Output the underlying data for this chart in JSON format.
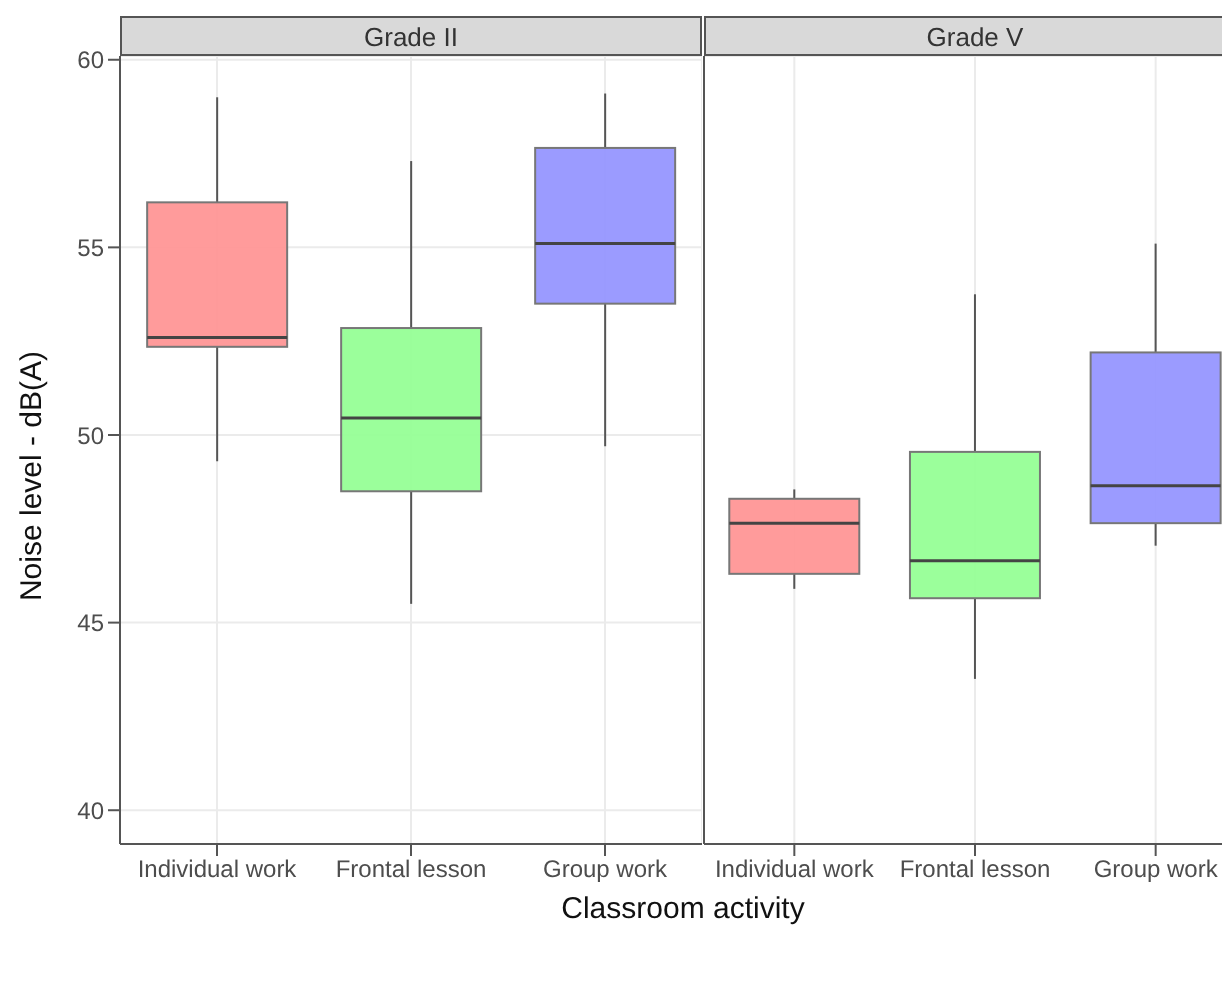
{
  "chart_data": [
    {
      "type": "box",
      "title": "Grade II",
      "ylabel": "Noise level - dB(A)",
      "xlabel": "Classroom activity",
      "categories": [
        "Individual work",
        "Frontal lesson",
        "Group work"
      ],
      "colors": [
        "#ff9696",
        "#96ff96",
        "#9696ff"
      ],
      "boxes": [
        {
          "low": 49.3,
          "q1": 52.35,
          "median": 52.6,
          "q3": 56.2,
          "high": 59.0
        },
        {
          "low": 45.5,
          "q1": 48.5,
          "median": 50.45,
          "q3": 52.85,
          "high": 57.3
        },
        {
          "low": 49.7,
          "q1": 53.5,
          "median": 55.1,
          "q3": 57.65,
          "high": 59.1
        }
      ],
      "ylim": [
        39.1,
        60.1
      ],
      "yticks": [
        40,
        45,
        50,
        55,
        60
      ],
      "grid": true
    },
    {
      "type": "box",
      "title": "Grade V",
      "categories": [
        "Individual work",
        "Frontal lesson",
        "Group work"
      ],
      "colors": [
        "#ff9696",
        "#96ff96",
        "#9696ff"
      ],
      "boxes": [
        {
          "low": 45.9,
          "q1": 46.3,
          "median": 47.65,
          "q3": 48.3,
          "high": 48.55
        },
        {
          "low": 43.5,
          "q1": 45.65,
          "median": 46.65,
          "q3": 49.55,
          "high": 53.75
        },
        {
          "low": 47.05,
          "q1": 47.65,
          "median": 48.65,
          "q3": 52.2,
          "high": 55.1
        }
      ],
      "ylim": [
        39.1,
        60.1
      ],
      "yticks": [
        40,
        45,
        50,
        55,
        60
      ],
      "grid": true,
      "tick_labels": "x"
    }
  ]
}
